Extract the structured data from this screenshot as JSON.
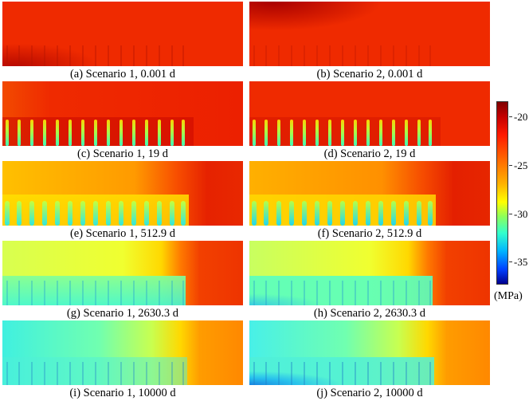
{
  "panels": [
    {
      "caption": "(a) Scenario 1, 0.001 d",
      "state": "a"
    },
    {
      "caption": "(b) Scenario 2, 0.001 d",
      "state": "b"
    },
    {
      "caption": "(c) Scenario 1, 19 d",
      "state": "c"
    },
    {
      "caption": "(d) Scenario 2, 19 d",
      "state": "d"
    },
    {
      "caption": "(e) Scenario 1, 512.9 d",
      "state": "e"
    },
    {
      "caption": "(f) Scenario 2, 512.9 d",
      "state": "f"
    },
    {
      "caption": "(g) Scenario 1, 2630.3 d",
      "state": "g"
    },
    {
      "caption": "(h) Scenario 2, 2630.3 d",
      "state": "h"
    },
    {
      "caption": "(i) Scenario 1, 10000 d",
      "state": "i"
    },
    {
      "caption": "(j) Scenario 2, 10000 d",
      "state": "j"
    }
  ],
  "colorbar": {
    "ticks": [
      "-20",
      "-25",
      "-30",
      "-35"
    ],
    "min": -37,
    "max": -18,
    "unit": "(MPa)",
    "colors": [
      "#7f0000",
      "#ff1a00",
      "#ffb200",
      "#ffff00",
      "#33ffcc",
      "#0040ff",
      "#00008f"
    ]
  }
}
